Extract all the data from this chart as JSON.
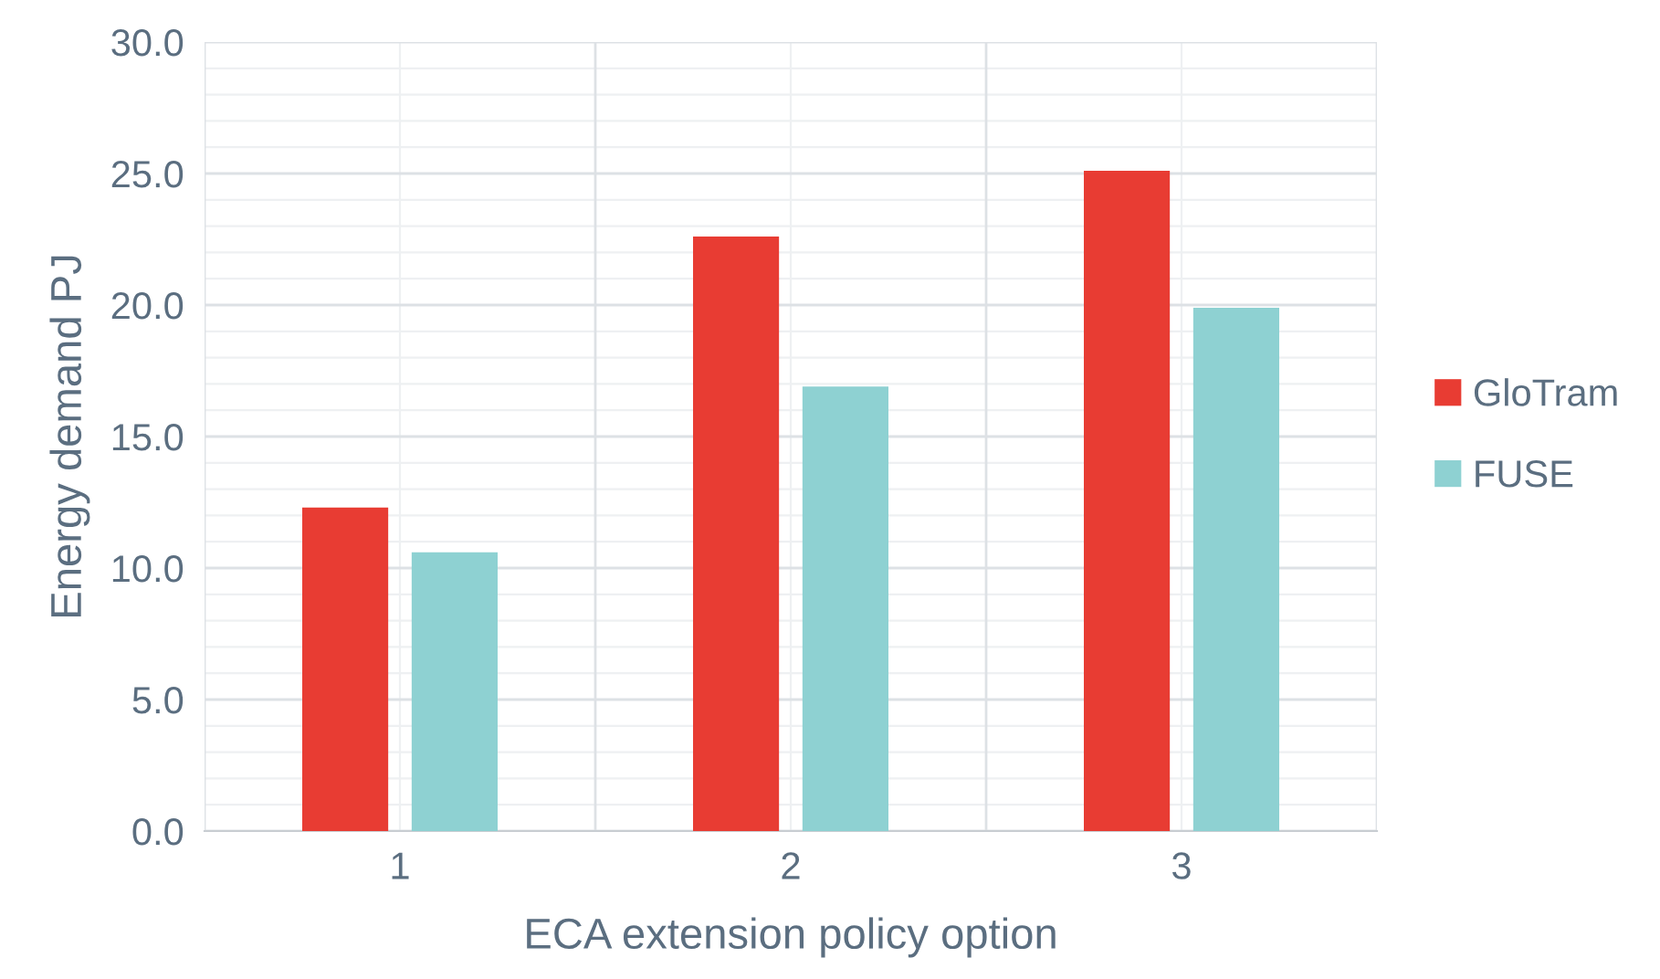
{
  "chart_data": {
    "type": "bar",
    "xlabel": "ECA extension policy option",
    "ylabel": "Energy demand PJ",
    "categories": [
      "1",
      "2",
      "3"
    ],
    "series": [
      {
        "name": "GloTram",
        "color": "#e83c33",
        "values": [
          12.3,
          22.6,
          25.1
        ]
      },
      {
        "name": "FUSE",
        "color": "#8ed1d2",
        "values": [
          10.6,
          16.9,
          19.9
        ]
      }
    ],
    "ylim": [
      0,
      30
    ],
    "yticks": [
      {
        "value": 0,
        "label": "0.0"
      },
      {
        "value": 5,
        "label": "5.0"
      },
      {
        "value": 10,
        "label": "10.0"
      },
      {
        "value": 15,
        "label": "15.0"
      },
      {
        "value": 20,
        "label": "20.0"
      },
      {
        "value": 25,
        "label": "25.0"
      },
      {
        "value": 30,
        "label": "30.0"
      }
    ],
    "grid": true,
    "legend": "right"
  }
}
